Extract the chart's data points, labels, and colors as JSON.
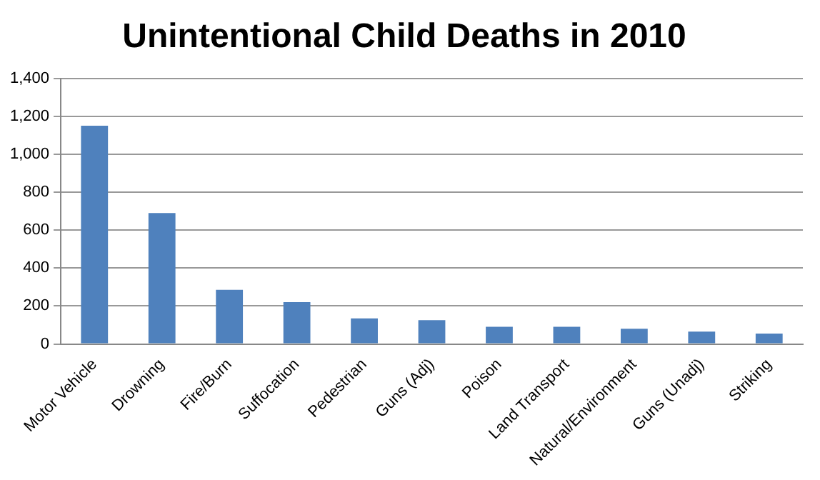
{
  "chart_data": {
    "type": "bar",
    "title": "Unintentional Child Deaths in 2010",
    "categories": [
      "Motor Vehicle",
      "Drowning",
      "Fire/Burn",
      "Suffocation",
      "Pedestrian",
      "Guns (Adj)",
      "Poison",
      "Land Transport",
      "Natural/Environment",
      "Guns (Unadj)",
      "Striking"
    ],
    "values": [
      1150,
      690,
      285,
      220,
      135,
      125,
      90,
      90,
      80,
      65,
      55
    ],
    "color": "#4f81bd",
    "ylim": [
      0,
      1400
    ],
    "yticks": [
      0,
      200,
      400,
      600,
      800,
      {
        "value": 1000,
        "label": "1,000"
      },
      {
        "value": 1200,
        "label": "1,200"
      },
      {
        "value": 1400,
        "label": "1,400"
      }
    ],
    "grid": "y",
    "legend": false
  }
}
